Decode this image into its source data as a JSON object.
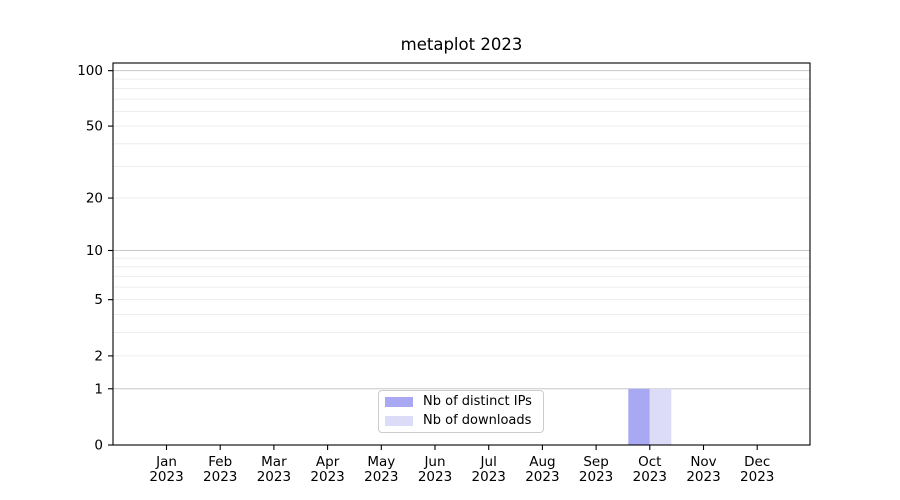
{
  "figure": {
    "background": "#ffffff"
  },
  "chart_data": {
    "type": "bar",
    "title": "metaplot 2023",
    "xlabel": "",
    "ylabel": "",
    "categories": [
      "Jan 2023",
      "Feb 2023",
      "Mar 2023",
      "Apr 2023",
      "May 2023",
      "Jun 2023",
      "Jul 2023",
      "Aug 2023",
      "Sep 2023",
      "Oct 2023",
      "Nov 2023",
      "Dec 2023"
    ],
    "series": [
      {
        "name": "Nb of distinct IPs",
        "color": "#a9a9f3",
        "values": [
          0,
          0,
          0,
          0,
          0,
          0,
          0,
          0,
          0,
          1,
          0,
          0
        ]
      },
      {
        "name": "Nb of downloads",
        "color": "#dcdcf9",
        "values": [
          0,
          0,
          0,
          0,
          0,
          0,
          0,
          0,
          0,
          1,
          0,
          0
        ]
      }
    ],
    "y_scale": "log1p",
    "ylim": [
      0,
      110
    ],
    "y_ticks": [
      {
        "value": 0,
        "label": "0"
      },
      {
        "value": 1,
        "label": "1"
      },
      {
        "value": 2,
        "label": "2"
      },
      {
        "value": 5,
        "label": "5"
      },
      {
        "value": 10,
        "label": "10"
      },
      {
        "value": 20,
        "label": "20"
      },
      {
        "value": 50,
        "label": "50"
      },
      {
        "value": 100,
        "label": "100"
      }
    ],
    "y_minor_gridlines": [
      2,
      3,
      4,
      5,
      6,
      7,
      8,
      9,
      20,
      30,
      40,
      50,
      60,
      70,
      80,
      90
    ],
    "y_decade_gridlines": [
      1,
      10,
      100
    ],
    "grid": "horizontal only, minor lines light gray, decade lines darker gray",
    "legend_position": "inside bottom-center",
    "colors": {
      "grid_minor": "#ededed",
      "grid_decade": "#c8c8c8",
      "spine": "#000000",
      "text": "#000000",
      "legend_border": "#cccccc",
      "legend_bg": "#ffffff"
    }
  }
}
